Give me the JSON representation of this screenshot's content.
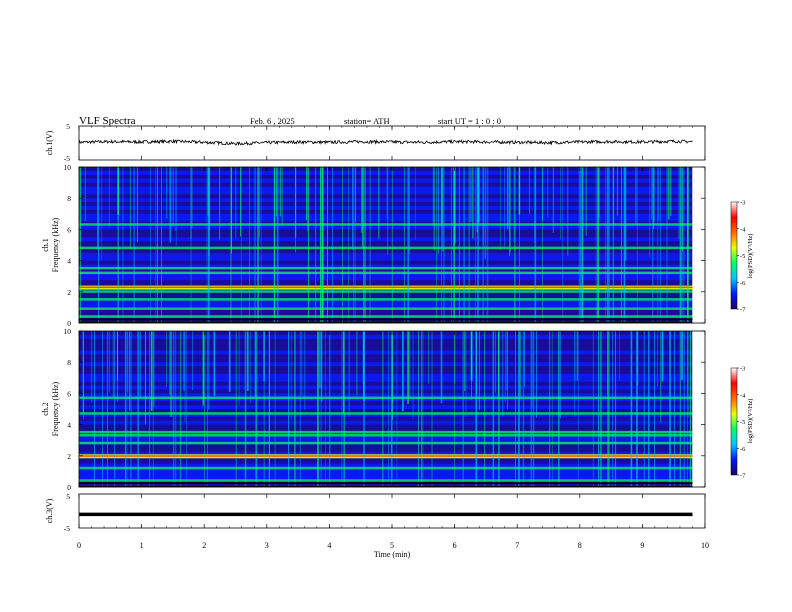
{
  "header": {
    "title": "VLF  Spectra",
    "date": "Feb. 6  , 2025",
    "station": "station= ATH",
    "start": "start  UT  =   1  : 0   : 0"
  },
  "panels": {
    "ch1_wave_label": "ch.1(V)",
    "ch1_spec_label": "ch.1",
    "ch2_spec_label": "ch.2",
    "ch3_wave_label": "ch.3(V)",
    "freq_axis_label": "Frequency  (kHz)",
    "colorbar_label": "log(PSD)(V²/Hz)",
    "time_axis_label": "Time  (min)"
  },
  "colors": {
    "colormap": [
      "#1a0066",
      "#0018ff",
      "#00c8ff",
      "#00ff66",
      "#e8ff00",
      "#ff6a00",
      "#ff0000",
      "#ffffff"
    ],
    "trace": "#000000"
  },
  "chart_data": [
    {
      "type": "line",
      "name": "ch1-waveform",
      "ylabel": "ch.1(V)",
      "ylim": [
        -5,
        5
      ],
      "yticks": [
        -5,
        5
      ],
      "xlim": [
        0,
        10
      ],
      "x": [
        0,
        0.5,
        1,
        1.5,
        2,
        2.5,
        3,
        3.5,
        4,
        4.5,
        5,
        5.5,
        6,
        6.5,
        7,
        7.5,
        8,
        8.5,
        9,
        9.5,
        9.8
      ],
      "y": [
        0.2,
        0.4,
        0.3,
        0.5,
        0.2,
        -0.2,
        0.1,
        0.3,
        0.2,
        0.4,
        0.3,
        0.2,
        0.4,
        0.3,
        0.2,
        0.1,
        0.3,
        0.4,
        0.3,
        0.5,
        0.4
      ]
    },
    {
      "type": "heatmap",
      "name": "ch1-spectrogram",
      "ylabel": "Frequency  (kHz)",
      "ylim": [
        0,
        10
      ],
      "yticks": [
        0,
        2,
        4,
        6,
        8,
        10
      ],
      "xlim": [
        0,
        10
      ],
      "data_end_min": 9.8,
      "colorbar": {
        "label": "log(PSD)(V²/Hz)",
        "range": [
          -7,
          -3
        ],
        "ticks": [
          -3,
          -4,
          -5,
          -6,
          -7
        ]
      },
      "bands_khz": [
        0.4,
        0.9,
        1.5,
        2.0,
        2.3,
        3.2,
        3.5,
        4.8,
        6.3
      ],
      "enhanced_band_khz": 2.3
    },
    {
      "type": "heatmap",
      "name": "ch2-spectrogram",
      "ylabel": "Frequency  (kHz)",
      "ylim": [
        0,
        10
      ],
      "yticks": [
        0,
        2,
        4,
        6,
        8,
        10
      ],
      "xlim": [
        0,
        10
      ],
      "data_end_min": 9.8,
      "colorbar": {
        "label": "log(PSD)(V²/Hz)",
        "range": [
          -7,
          -3
        ],
        "ticks": [
          -3,
          -4,
          -5,
          -6,
          -7
        ]
      },
      "bands_khz": [
        0.4,
        1.2,
        2.0,
        2.8,
        3.3,
        3.5,
        4.7,
        5.7
      ],
      "enhanced_band_khz": 2.0
    },
    {
      "type": "line",
      "name": "ch3-waveform",
      "ylabel": "ch.3(V)",
      "ylim": [
        -5,
        5
      ],
      "yticks": [
        -5,
        5
      ],
      "xlim": [
        0,
        10
      ],
      "x": [
        0,
        9.8
      ],
      "y": [
        -1,
        -1
      ]
    }
  ],
  "time_axis": {
    "label": "Time  (min)",
    "ticks": [
      "0",
      "1",
      "2",
      "3",
      "4",
      "5",
      "6",
      "7",
      "8",
      "9",
      "10"
    ]
  }
}
